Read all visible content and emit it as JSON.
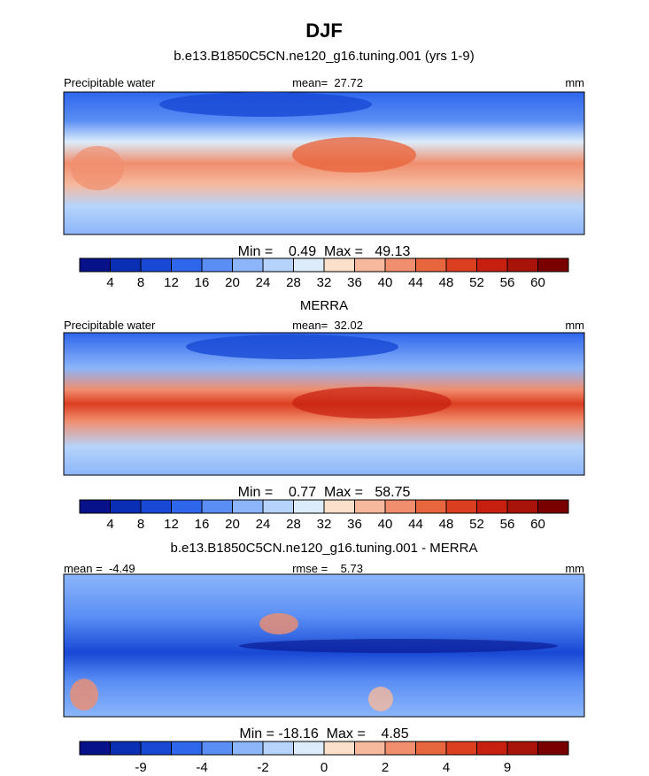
{
  "title": "DJF",
  "panels": [
    {
      "subtitle": "b.e13.B1850C5CN.ne120_g16.tuning.001 (yrs 1-9)",
      "left_label": "Precipitable water",
      "center_label": "mean=  27.72",
      "right_label": "mm",
      "stats": "Min =    0.49  Max =   49.13",
      "colorbar": {
        "labels": [
          "4",
          "8",
          "12",
          "16",
          "20",
          "24",
          "28",
          "32",
          "36",
          "40",
          "44",
          "48",
          "52",
          "56",
          "60"
        ],
        "colors": [
          "#07128a",
          "#0a2eb4",
          "#1848d4",
          "#2e66ec",
          "#5a8ef5",
          "#8cb5fa",
          "#b6d4fb",
          "#dcecfa",
          "#fbe0cc",
          "#f6b99e",
          "#f08e6e",
          "#e8663e",
          "#dc3e20",
          "#c82010",
          "#a8140a",
          "#7a0000"
        ]
      }
    },
    {
      "subtitle": "MERRA",
      "left_label": "Precipitable water",
      "center_label": "mean=  32.02",
      "right_label": "mm",
      "stats": "Min =    0.77  Max =   58.75",
      "colorbar": {
        "labels": [
          "4",
          "8",
          "12",
          "16",
          "20",
          "24",
          "28",
          "32",
          "36",
          "40",
          "44",
          "48",
          "52",
          "56",
          "60"
        ],
        "colors": [
          "#07128a",
          "#0a2eb4",
          "#1848d4",
          "#2e66ec",
          "#5a8ef5",
          "#8cb5fa",
          "#b6d4fb",
          "#dcecfa",
          "#fbe0cc",
          "#f6b99e",
          "#f08e6e",
          "#e8663e",
          "#dc3e20",
          "#c82010",
          "#a8140a",
          "#7a0000"
        ]
      }
    },
    {
      "subtitle": "b.e13.B1850C5CN.ne120_g16.tuning.001 - MERRA",
      "left_label": "mean =  -4.49",
      "center_label": "rmse =    5.73",
      "right_label": "mm",
      "stats": "Min = -18.16  Max =    4.85",
      "colorbar": {
        "labels": [
          "-9",
          "-4",
          "-2",
          "0",
          "2",
          "4",
          "9"
        ],
        "colors": [
          "#07128a",
          "#0a2eb4",
          "#1848d4",
          "#2e66ec",
          "#5a8ef5",
          "#8cb5fa",
          "#b6d4fb",
          "#dcecfa",
          "#fbe0cc",
          "#f6b99e",
          "#f08e6e",
          "#e8663e",
          "#dc3e20",
          "#c82010",
          "#a8140a",
          "#7a0000"
        ]
      }
    }
  ]
}
